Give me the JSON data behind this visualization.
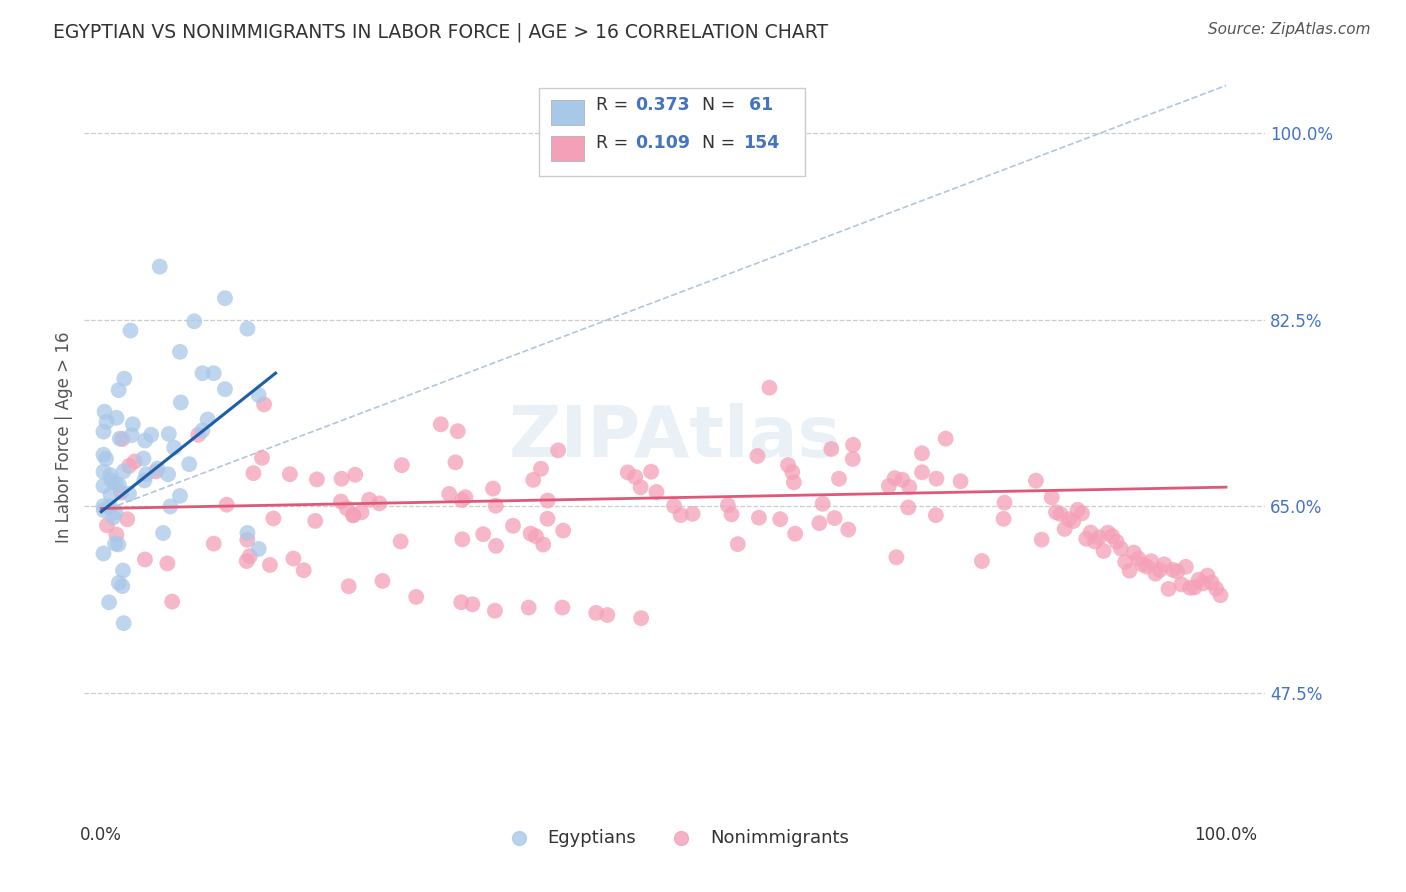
{
  "title": "EGYPTIAN VS NONIMMIGRANTS IN LABOR FORCE | AGE > 16 CORRELATION CHART",
  "source_text": "Source: ZipAtlas.com",
  "ylabel": "In Labor Force | Age > 16",
  "yticks": [
    0.475,
    0.65,
    0.825,
    1.0
  ],
  "xticks": [
    0.0,
    1.0
  ],
  "xtick_labels": [
    "0.0%",
    "100.0%"
  ],
  "legend_label1": "Egyptians",
  "legend_label2": "Nonimmigrants",
  "watermark": "ZIPAtlas",
  "blue_color": "#a8c8e8",
  "pink_color": "#f4a0b8",
  "blue_line_color": "#1a5fa8",
  "pink_line_color": "#e05878",
  "diag_line_color": "#a0b8d0",
  "background_color": "#ffffff",
  "grid_color": "#c8c8c8",
  "title_color": "#333333",
  "ytick_color": "#4472c4",
  "source_color": "#555555"
}
